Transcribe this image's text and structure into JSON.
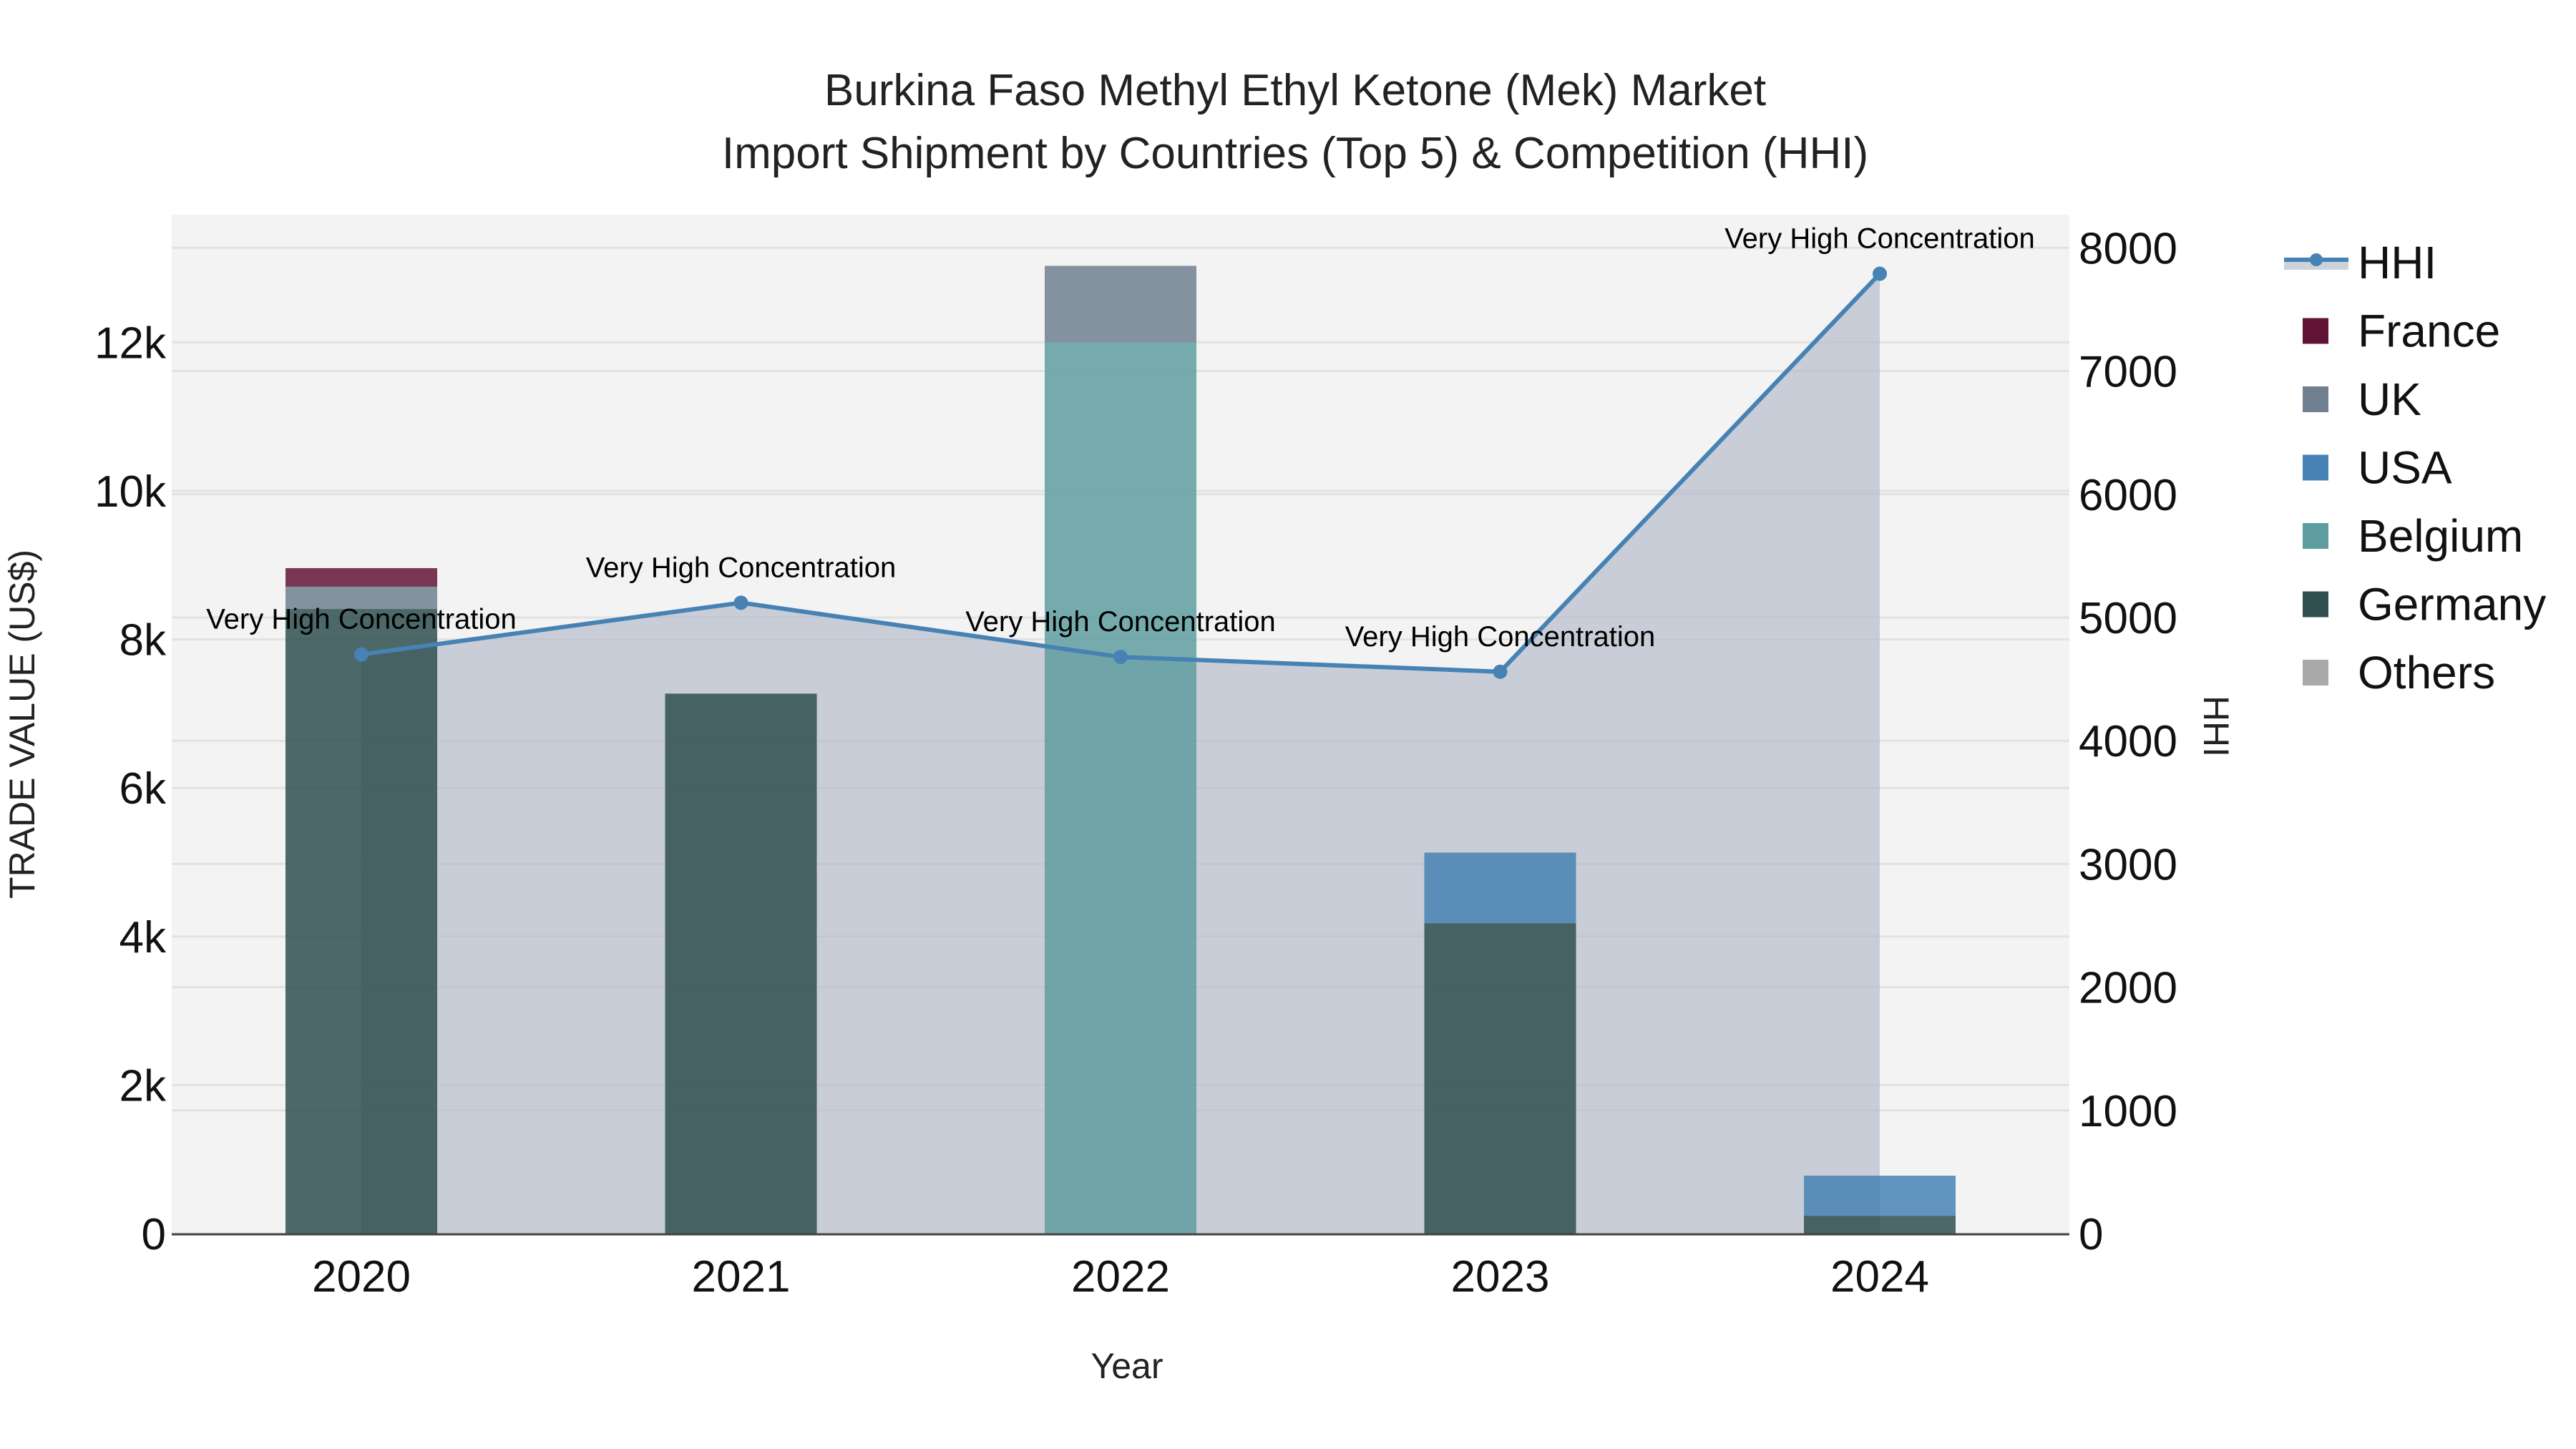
{
  "title": {
    "line1": "Burkina Faso Methyl Ethyl Ketone (Mek) Market",
    "line2": "Import Shipment by Countries (Top 5) & Competition (HHI)"
  },
  "axes": {
    "x_title": "Year",
    "y_left_title": "TRADE VALUE (US$)",
    "y_right_title": "HHI",
    "y_left_ticks": [
      "0",
      "2k",
      "4k",
      "6k",
      "8k",
      "10k",
      "12k"
    ],
    "y_left_tick_values": [
      0,
      2000,
      4000,
      6000,
      8000,
      10000,
      12000
    ],
    "y_right_ticks": [
      "0",
      "1000",
      "2000",
      "3000",
      "4000",
      "5000",
      "6000",
      "7000",
      "8000"
    ],
    "y_right_tick_values": [
      0,
      1000,
      2000,
      3000,
      4000,
      5000,
      6000,
      7000,
      8000
    ]
  },
  "legend": [
    {
      "name": "HHI",
      "type": "line",
      "color": "#4682B4"
    },
    {
      "name": "France",
      "type": "bar",
      "color": "#621436"
    },
    {
      "name": "UK",
      "type": "bar",
      "color": "#708090"
    },
    {
      "name": "USA",
      "type": "bar",
      "color": "#4682B4"
    },
    {
      "name": "Belgium",
      "type": "bar",
      "color": "#5F9EA0"
    },
    {
      "name": "Germany",
      "type": "bar",
      "color": "#2F4F4F"
    },
    {
      "name": "Others",
      "type": "bar",
      "color": "#A9A9A9"
    }
  ],
  "colors": {
    "plot_bg": "#F3F3F3",
    "grid": "#E2E2E2",
    "hhi_line": "#4682B4",
    "hhi_fill": "#B0B8C8"
  },
  "chart_data": {
    "type": "bar",
    "title": "Burkina Faso Methyl Ethyl Ketone (Mek) Market — Import Shipment by Countries (Top 5) & Competition (HHI)",
    "xlabel": "Year",
    "ylabel": "TRADE VALUE (US$)",
    "y2label": "HHI",
    "categories": [
      "2020",
      "2021",
      "2022",
      "2023",
      "2024"
    ],
    "stack_order": [
      "Germany",
      "Belgium",
      "USA",
      "UK",
      "France",
      "Others"
    ],
    "series": [
      {
        "name": "France",
        "color": "#621436",
        "values": [
          250,
          0,
          0,
          0,
          0
        ]
      },
      {
        "name": "UK",
        "color": "#708090",
        "values": [
          300,
          0,
          1030,
          0,
          0
        ]
      },
      {
        "name": "USA",
        "color": "#4682B4",
        "values": [
          0,
          0,
          0,
          950,
          540
        ]
      },
      {
        "name": "Belgium",
        "color": "#5F9EA0",
        "values": [
          0,
          0,
          12000,
          0,
          0
        ]
      },
      {
        "name": "Germany",
        "color": "#2F4F4F",
        "values": [
          8410,
          7270,
          0,
          4180,
          240
        ]
      },
      {
        "name": "Others",
        "color": "#A9A9A9",
        "values": [
          0,
          0,
          0,
          0,
          0
        ]
      }
    ],
    "hhi": {
      "name": "HHI",
      "type": "line+area",
      "values": [
        4700,
        5120,
        4680,
        4560,
        7790
      ],
      "annotations": [
        "Very High Concentration",
        "Very High Concentration",
        "Very High Concentration",
        "Very High Concentration",
        "Very High Concentration"
      ]
    },
    "ylim": [
      0,
      13700
    ],
    "y2lim": [
      0,
      8270
    ],
    "grid": true,
    "legend_position": "right"
  }
}
